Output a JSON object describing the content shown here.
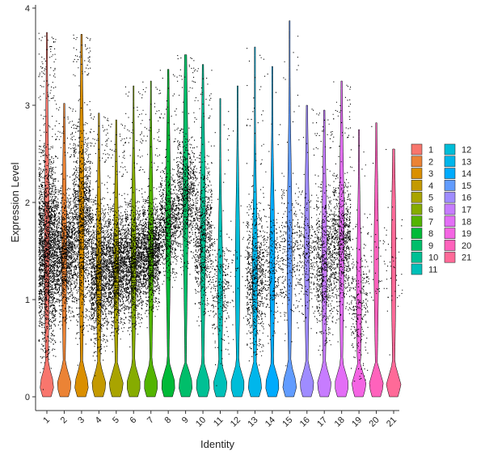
{
  "chart_data": {
    "type": "violin",
    "xlabel": "Identity",
    "ylabel": "Expression Level",
    "ylim": [
      0,
      4
    ],
    "yticks": [
      0,
      1,
      2,
      3,
      4
    ],
    "grid": false,
    "legend_position": "right",
    "points_overlaid": true,
    "categories": [
      "1",
      "2",
      "3",
      "4",
      "5",
      "6",
      "7",
      "8",
      "9",
      "10",
      "11",
      "12",
      "13",
      "14",
      "15",
      "16",
      "17",
      "18",
      "19",
      "20",
      "21"
    ],
    "colors": [
      "#F8766D",
      "#EB8335",
      "#DA8F00",
      "#C49A00",
      "#A9A400",
      "#86AC00",
      "#53B400",
      "#00BA38",
      "#00BE6A",
      "#00C094",
      "#00C0B8",
      "#00BDD8",
      "#00B6EB",
      "#00ABFD",
      "#619CFF",
      "#9F8CFF",
      "#C77CFF",
      "#E36EF6",
      "#F465E3",
      "#FF62BC",
      "#FF6A98"
    ],
    "series": [
      {
        "name": "1",
        "max": 3.75,
        "upper_body": 3.05,
        "median": 1.55,
        "density": "high"
      },
      {
        "name": "2",
        "max": 3.02,
        "upper_body": 2.45,
        "median": 1.5,
        "density": "high"
      },
      {
        "name": "3",
        "max": 3.73,
        "upper_body": 3.3,
        "median": 1.8,
        "density": "high"
      },
      {
        "name": "4",
        "max": 2.92,
        "upper_body": 2.4,
        "median": 1.3,
        "density": "high"
      },
      {
        "name": "5",
        "max": 2.85,
        "upper_body": 2.25,
        "median": 1.35,
        "density": "high"
      },
      {
        "name": "6",
        "max": 3.2,
        "upper_body": 2.3,
        "median": 1.4,
        "density": "high"
      },
      {
        "name": "7",
        "max": 3.25,
        "upper_body": 2.3,
        "median": 1.5,
        "density": "high"
      },
      {
        "name": "8",
        "max": 3.37,
        "upper_body": 2.6,
        "median": 1.8,
        "density": "medium"
      },
      {
        "name": "9",
        "max": 3.52,
        "upper_body": 3.1,
        "median": 2.1,
        "density": "medium"
      },
      {
        "name": "10",
        "max": 3.42,
        "upper_body": 2.85,
        "median": 1.7,
        "density": "medium"
      },
      {
        "name": "11",
        "max": 3.07,
        "upper_body": 2.1,
        "median": 1.1,
        "density": "low"
      },
      {
        "name": "12",
        "max": 3.2,
        "upper_body": 2.3,
        "median": 1.3,
        "density": "sparse"
      },
      {
        "name": "13",
        "max": 3.6,
        "upper_body": 2.35,
        "median": 1.25,
        "density": "medium"
      },
      {
        "name": "14",
        "max": 3.4,
        "upper_body": 2.3,
        "median": 1.35,
        "density": "low"
      },
      {
        "name": "15",
        "max": 3.87,
        "upper_body": 2.7,
        "median": 1.5,
        "density": "low"
      },
      {
        "name": "16",
        "max": 3.0,
        "upper_body": 2.45,
        "median": 1.5,
        "density": "low"
      },
      {
        "name": "17",
        "max": 2.95,
        "upper_body": 2.55,
        "median": 1.4,
        "density": "medium"
      },
      {
        "name": "18",
        "max": 3.25,
        "upper_body": 2.65,
        "median": 1.6,
        "density": "medium"
      },
      {
        "name": "19",
        "max": 2.75,
        "upper_body": 2.1,
        "median": 1.0,
        "density": "low"
      },
      {
        "name": "20",
        "max": 2.82,
        "upper_body": 2.3,
        "median": 1.4,
        "density": "sparse"
      },
      {
        "name": "21",
        "max": 2.55,
        "upper_body": 2.55,
        "median": 1.4,
        "density": "sparse"
      }
    ]
  }
}
